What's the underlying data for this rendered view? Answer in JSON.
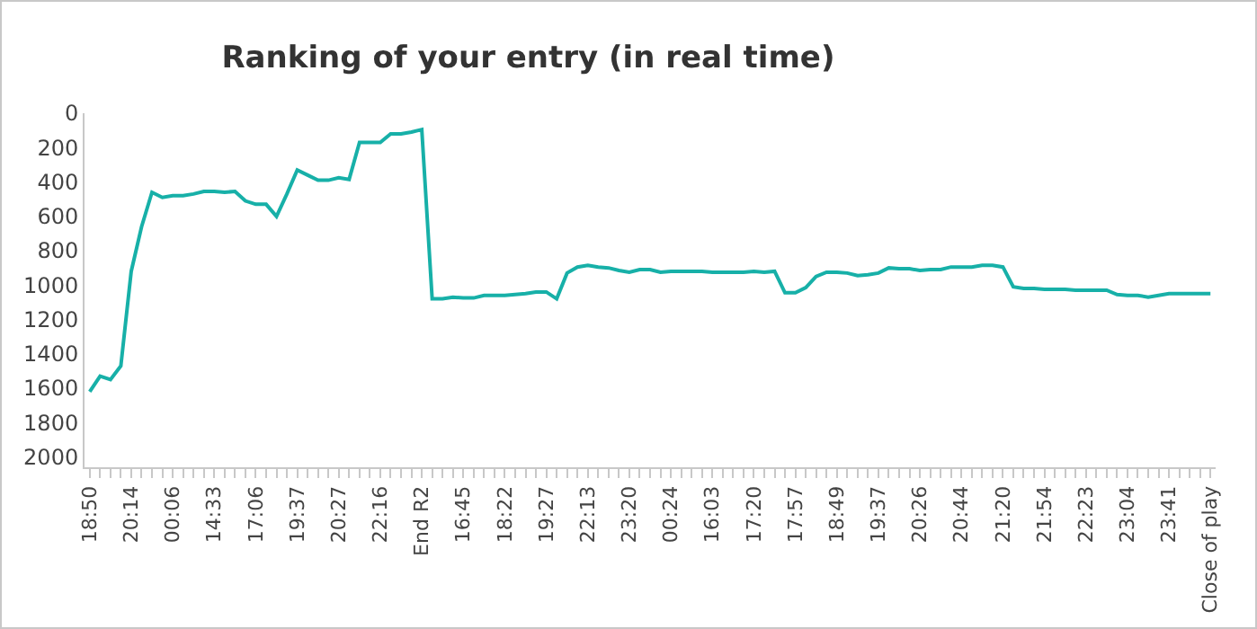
{
  "chart_data": {
    "type": "line",
    "title": "Ranking of your entry (in real time)",
    "categories": [
      "18:50",
      null,
      null,
      null,
      "20:14",
      null,
      null,
      null,
      "00:06",
      null,
      null,
      null,
      "14:33",
      null,
      null,
      null,
      "17:06",
      null,
      null,
      null,
      "19:37",
      null,
      null,
      null,
      "20:27",
      null,
      null,
      null,
      "22:16",
      null,
      null,
      null,
      "End R2",
      null,
      null,
      null,
      "16:45",
      null,
      null,
      null,
      "18:22",
      null,
      null,
      null,
      "19:27",
      null,
      null,
      null,
      "22:13",
      null,
      null,
      null,
      "23:20",
      null,
      null,
      null,
      "00:24",
      null,
      null,
      null,
      "16:03",
      null,
      null,
      null,
      "17:20",
      null,
      null,
      null,
      "17:57",
      null,
      null,
      null,
      "18:49",
      null,
      null,
      null,
      "19:37",
      null,
      null,
      null,
      "20:26",
      null,
      null,
      null,
      "20:44",
      null,
      null,
      null,
      "21:20",
      null,
      null,
      null,
      "21:54",
      null,
      null,
      null,
      "22:23",
      null,
      null,
      null,
      "23:04",
      null,
      null,
      null,
      "23:41",
      null,
      null,
      null,
      "Close of play"
    ],
    "series": [
      {
        "color": "#17b0a8",
        "values": [
          1620,
          1530,
          1550,
          1470,
          920,
          660,
          460,
          490,
          480,
          480,
          470,
          455,
          455,
          460,
          455,
          510,
          530,
          530,
          600,
          470,
          330,
          360,
          390,
          390,
          375,
          385,
          170,
          170,
          170,
          120,
          120,
          110,
          95,
          1080,
          1080,
          1070,
          1075,
          1075,
          1060,
          1060,
          1060,
          1055,
          1050,
          1040,
          1040,
          1080,
          930,
          895,
          885,
          895,
          900,
          915,
          925,
          910,
          910,
          925,
          920,
          920,
          920,
          920,
          925,
          925,
          925,
          925,
          920,
          925,
          920,
          1045,
          1045,
          1015,
          950,
          925,
          925,
          930,
          945,
          940,
          930,
          900,
          905,
          905,
          915,
          910,
          910,
          895,
          895,
          895,
          885,
          885,
          895,
          1010,
          1020,
          1020,
          1025,
          1025,
          1025,
          1030,
          1030,
          1030,
          1030,
          1055,
          1060,
          1060,
          1070,
          1060,
          1050,
          1050,
          1050,
          1050,
          1050
        ]
      }
    ],
    "ylim": [
      2060,
      0
    ],
    "yticks": [
      0,
      200,
      400,
      600,
      800,
      1000,
      1200,
      1400,
      1600,
      1800,
      2000
    ],
    "grid": false,
    "marker": "none",
    "line_style": "solid"
  }
}
